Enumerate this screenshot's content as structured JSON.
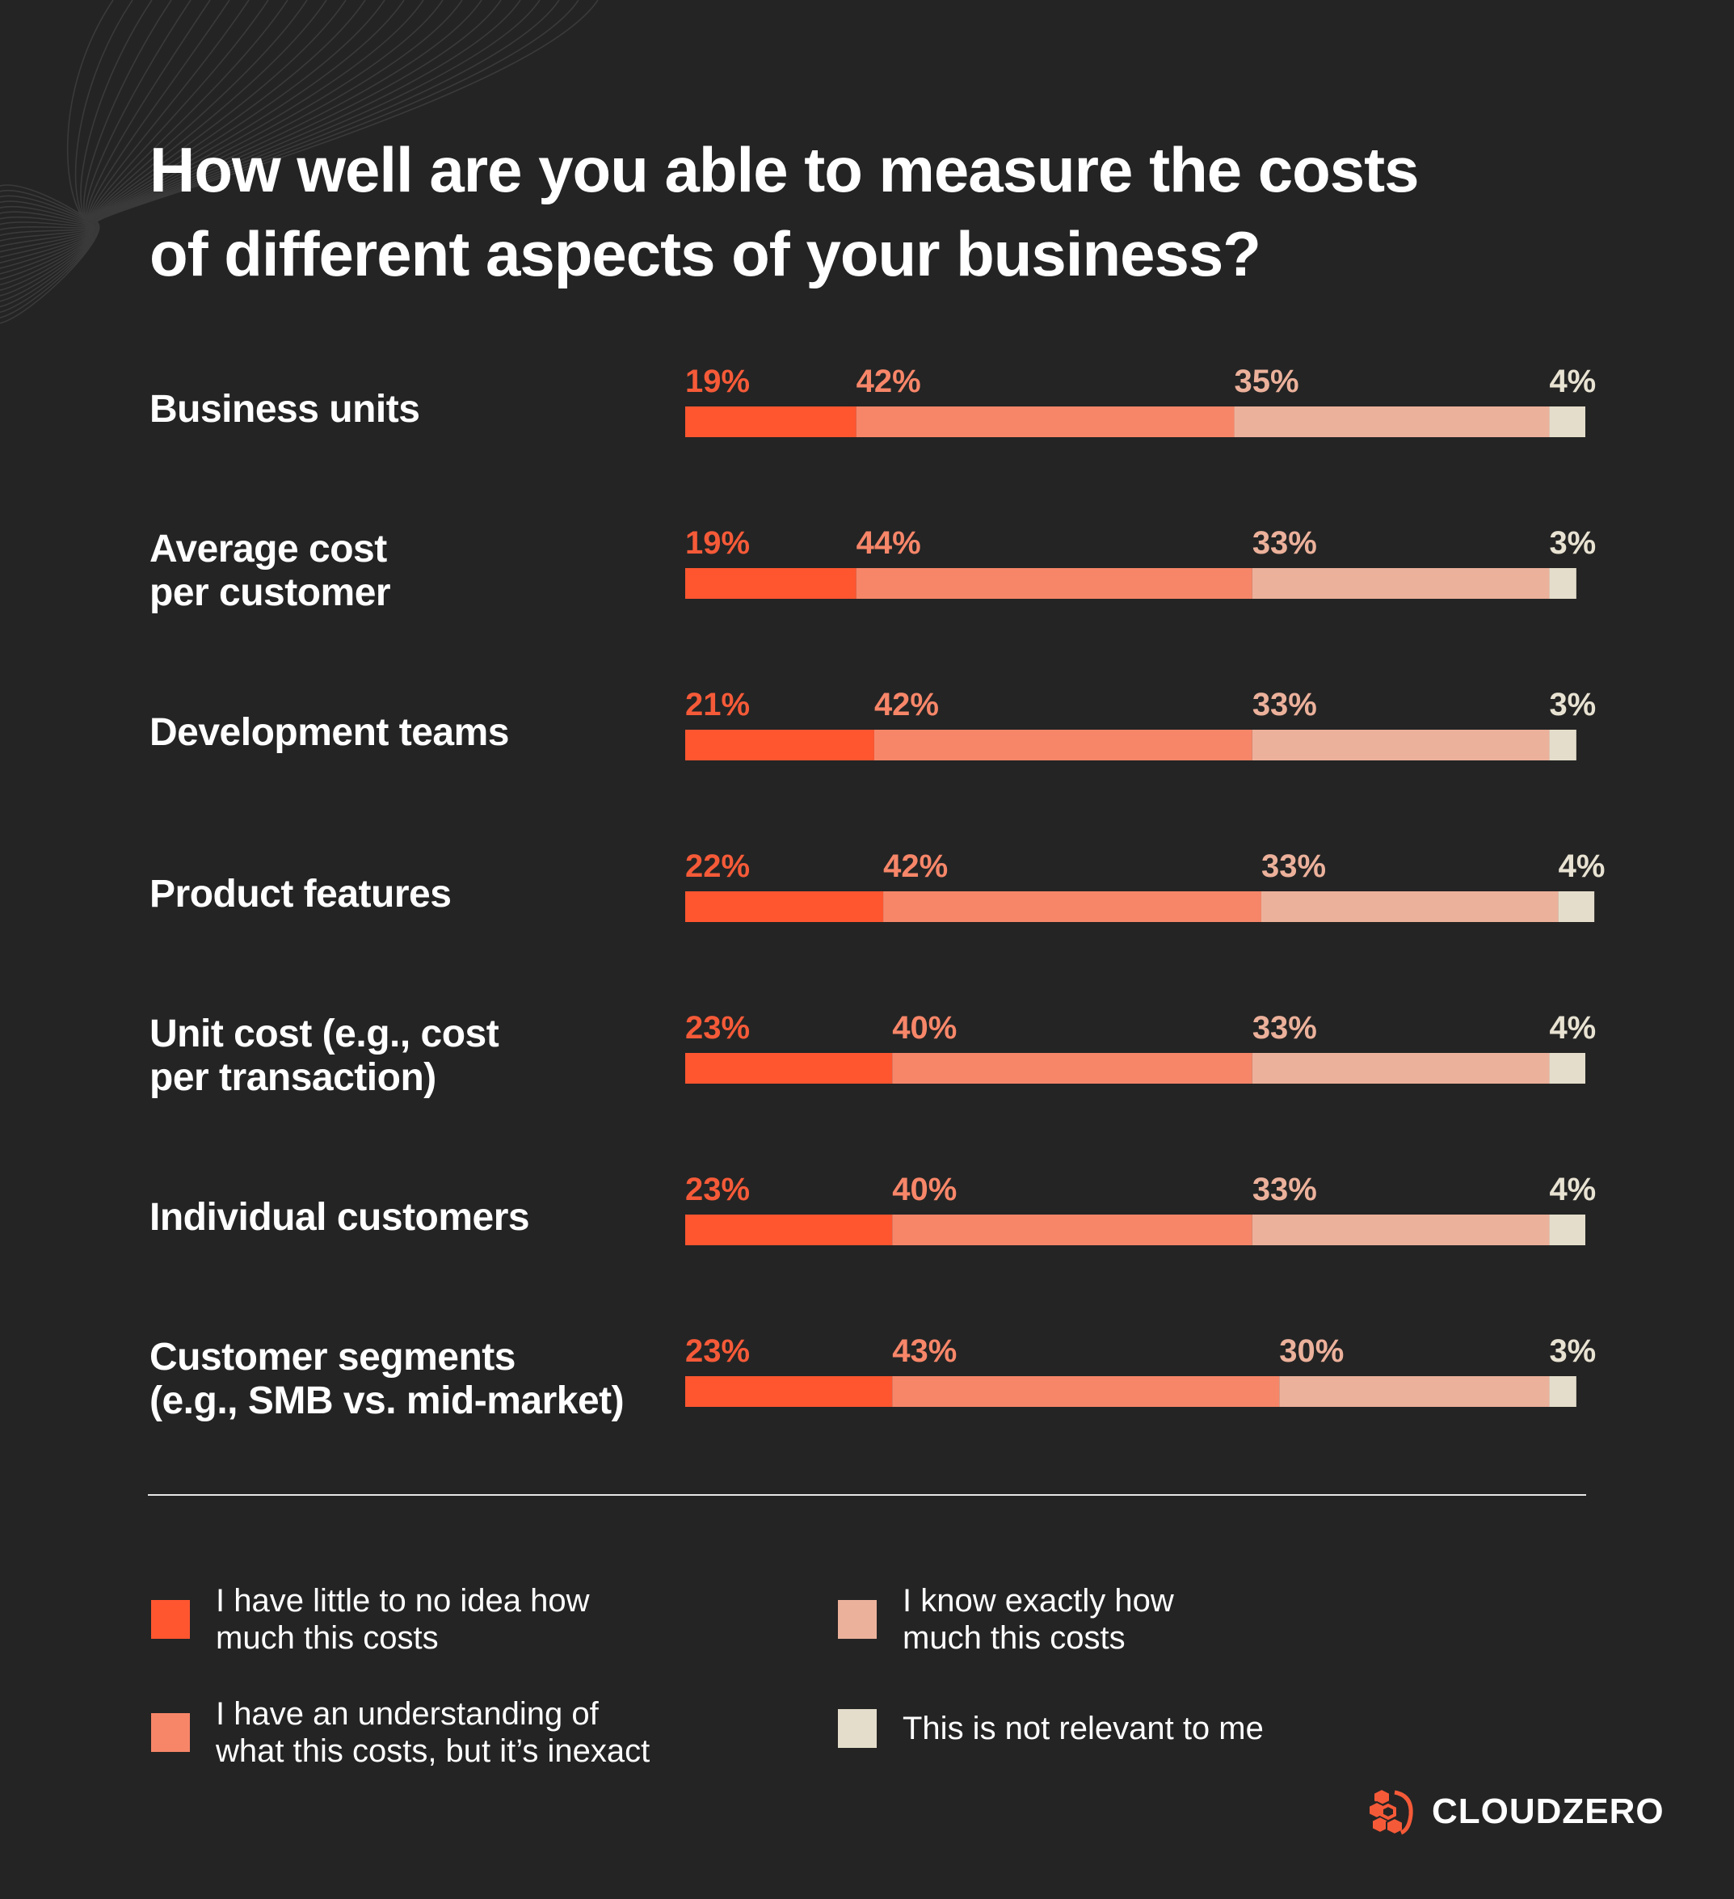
{
  "title_lines": [
    "How well are you able to measure the costs",
    "of different aspects of your business?"
  ],
  "colors": {
    "background": "#242424",
    "little_to_no_idea": "#FF5630",
    "understanding_inexact": "#F78669",
    "know_exactly": "#ECB19B",
    "not_relevant": "#E4DDCB"
  },
  "chart_data": {
    "type": "bar",
    "orientation": "horizontal",
    "stacked": true,
    "normalized": true,
    "title": "How well are you able to measure the costs of different aspects of your business?",
    "xlabel": "",
    "ylabel": "",
    "xlim": [
      0,
      100
    ],
    "grid": false,
    "legend_position": "bottom",
    "categories": [
      [
        "Business units"
      ],
      [
        "Average cost",
        "per customer"
      ],
      [
        "Development teams"
      ],
      [
        "Product features"
      ],
      [
        "Unit cost (e.g., cost",
        "per transaction)"
      ],
      [
        "Individual customers"
      ],
      [
        "Customer segments",
        "(e.g., SMB vs. mid-market)"
      ]
    ],
    "series": [
      {
        "name": "I have little to no idea how much this costs",
        "legend_lines": [
          "I have little to no idea how",
          "much this costs"
        ],
        "color": "#FF5630",
        "label_color": "#F55A38",
        "values": [
          19,
          19,
          21,
          22,
          23,
          23,
          23
        ]
      },
      {
        "name": "I have an understanding of what this costs, but it’s inexact",
        "legend_lines": [
          "I have an understanding of",
          "what this costs, but it’s inexact"
        ],
        "color": "#F78669",
        "label_color": "#F78669",
        "values": [
          42,
          44,
          42,
          42,
          40,
          40,
          43
        ]
      },
      {
        "name": "I know exactly how much this costs",
        "legend_lines": [
          "I know exactly how",
          "much this costs"
        ],
        "color": "#ECB19B",
        "label_color": "#ECB19B",
        "values": [
          35,
          33,
          33,
          33,
          33,
          33,
          30
        ]
      },
      {
        "name": "This is not relevant to me",
        "legend_lines": [
          "This is not relevant to me"
        ],
        "color": "#E4DDCB",
        "label_color": "#E8E2D2",
        "values": [
          4,
          3,
          3,
          4,
          4,
          4,
          3
        ]
      }
    ],
    "value_suffix": "%"
  },
  "brand": {
    "name": "CLOUDZERO",
    "icon": "cloudzero-cube-logo-icon"
  }
}
